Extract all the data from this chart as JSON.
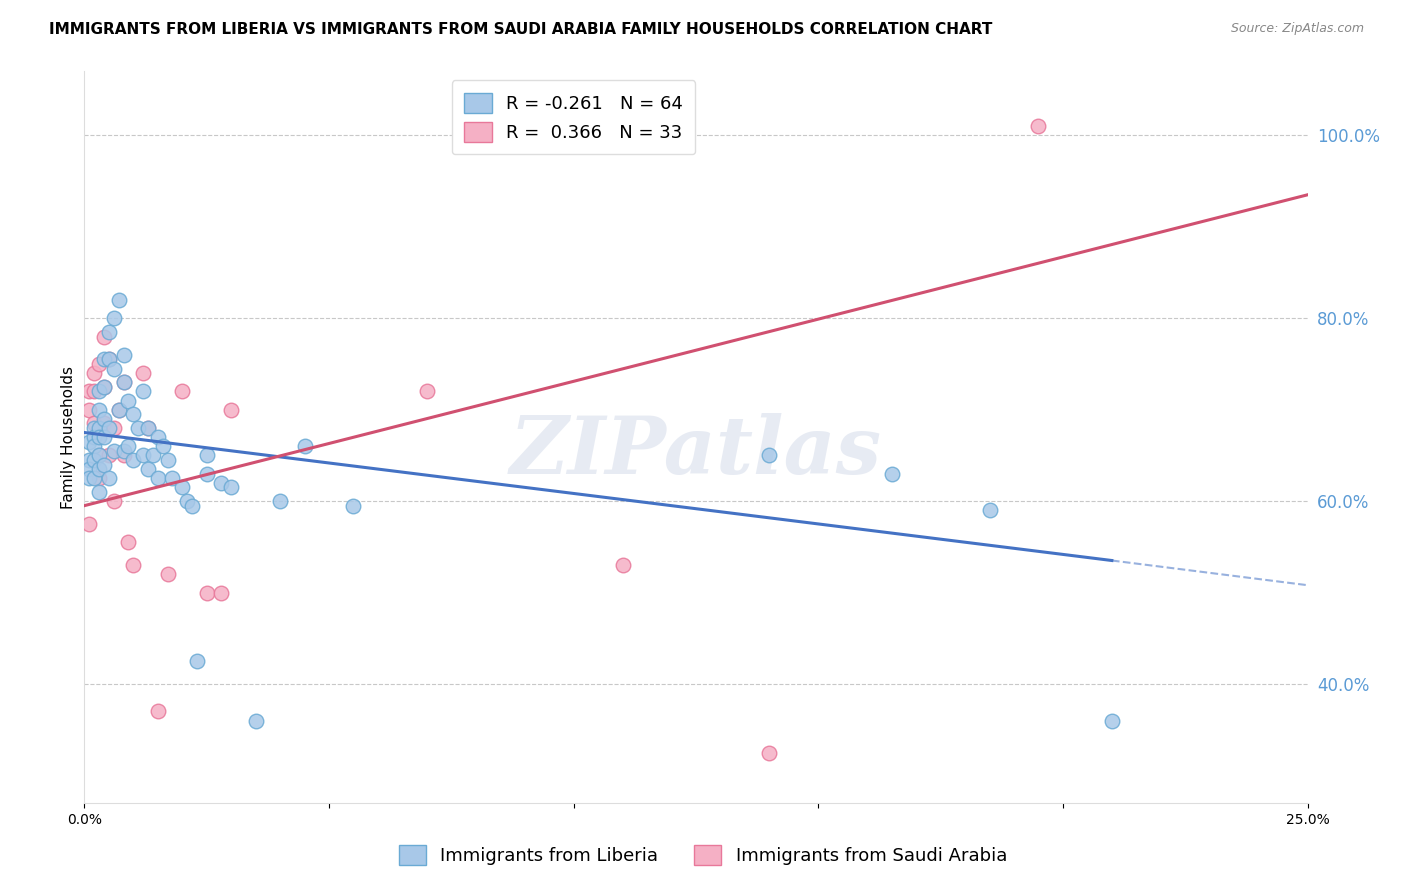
{
  "title": "IMMIGRANTS FROM LIBERIA VS IMMIGRANTS FROM SAUDI ARABIA FAMILY HOUSEHOLDS CORRELATION CHART",
  "source": "Source: ZipAtlas.com",
  "ylabel": "Family Households",
  "xlim": [
    0.0,
    0.25
  ],
  "ylim": [
    0.27,
    1.07
  ],
  "xticks": [
    0.0,
    0.05,
    0.1,
    0.15,
    0.2,
    0.25
  ],
  "xtick_labels": [
    "0.0%",
    "",
    "",
    "",
    "",
    "25.0%"
  ],
  "ytick_right": [
    0.4,
    0.6,
    0.8,
    1.0
  ],
  "ytick_right_labels": [
    "40.0%",
    "60.0%",
    "80.0%",
    "100.0%"
  ],
  "liberia_color": "#a8c8e8",
  "liberia_edge_color": "#6aaad4",
  "saudi_color": "#f5b0c5",
  "saudi_edge_color": "#e8789a",
  "liberia_line_color": "#4472c4",
  "saudi_line_color": "#d05070",
  "r_liberia": -0.261,
  "n_liberia": 64,
  "r_saudi": 0.366,
  "n_saudi": 33,
  "legend_label_liberia": "Immigrants from Liberia",
  "legend_label_saudi": "Immigrants from Saudi Arabia",
  "liberia_line_x0": 0.0,
  "liberia_line_y0": 0.675,
  "liberia_line_x1": 0.21,
  "liberia_line_y1": 0.535,
  "liberia_line_dash_x1": 0.25,
  "liberia_line_dash_y1": 0.508,
  "saudi_line_x0": 0.0,
  "saudi_line_y0": 0.595,
  "saudi_line_x1": 0.25,
  "saudi_line_y1": 0.935,
  "liberia_x": [
    0.001,
    0.001,
    0.001,
    0.001,
    0.002,
    0.002,
    0.002,
    0.002,
    0.002,
    0.003,
    0.003,
    0.003,
    0.003,
    0.003,
    0.003,
    0.003,
    0.004,
    0.004,
    0.004,
    0.004,
    0.004,
    0.005,
    0.005,
    0.005,
    0.005,
    0.006,
    0.006,
    0.006,
    0.007,
    0.007,
    0.008,
    0.008,
    0.008,
    0.009,
    0.009,
    0.01,
    0.01,
    0.011,
    0.012,
    0.012,
    0.013,
    0.013,
    0.014,
    0.015,
    0.015,
    0.016,
    0.017,
    0.018,
    0.02,
    0.021,
    0.022,
    0.023,
    0.025,
    0.025,
    0.028,
    0.03,
    0.035,
    0.04,
    0.045,
    0.055,
    0.14,
    0.165,
    0.185,
    0.21
  ],
  "liberia_y": [
    0.665,
    0.645,
    0.635,
    0.625,
    0.68,
    0.67,
    0.66,
    0.645,
    0.625,
    0.72,
    0.7,
    0.68,
    0.67,
    0.65,
    0.635,
    0.61,
    0.755,
    0.725,
    0.69,
    0.67,
    0.64,
    0.785,
    0.755,
    0.68,
    0.625,
    0.8,
    0.745,
    0.655,
    0.82,
    0.7,
    0.76,
    0.73,
    0.655,
    0.71,
    0.66,
    0.695,
    0.645,
    0.68,
    0.72,
    0.65,
    0.68,
    0.635,
    0.65,
    0.67,
    0.625,
    0.66,
    0.645,
    0.625,
    0.615,
    0.6,
    0.595,
    0.425,
    0.65,
    0.63,
    0.62,
    0.615,
    0.36,
    0.6,
    0.66,
    0.595,
    0.65,
    0.63,
    0.59,
    0.36
  ],
  "saudi_x": [
    0.001,
    0.001,
    0.001,
    0.002,
    0.002,
    0.002,
    0.003,
    0.003,
    0.003,
    0.004,
    0.004,
    0.004,
    0.005,
    0.005,
    0.006,
    0.006,
    0.007,
    0.008,
    0.008,
    0.009,
    0.01,
    0.012,
    0.013,
    0.015,
    0.017,
    0.02,
    0.025,
    0.028,
    0.03,
    0.07,
    0.11,
    0.14,
    0.195
  ],
  "saudi_y": [
    0.72,
    0.7,
    0.575,
    0.74,
    0.72,
    0.685,
    0.75,
    0.65,
    0.625,
    0.78,
    0.725,
    0.685,
    0.755,
    0.65,
    0.68,
    0.6,
    0.7,
    0.73,
    0.65,
    0.555,
    0.53,
    0.74,
    0.68,
    0.37,
    0.52,
    0.72,
    0.5,
    0.5,
    0.7,
    0.72,
    0.53,
    0.325,
    1.01
  ],
  "watermark": "ZIPatlas",
  "background_color": "#ffffff",
  "grid_color": "#c8c8c8",
  "title_fontsize": 11,
  "axis_label_fontsize": 11,
  "tick_fontsize": 10,
  "legend_fontsize": 13
}
